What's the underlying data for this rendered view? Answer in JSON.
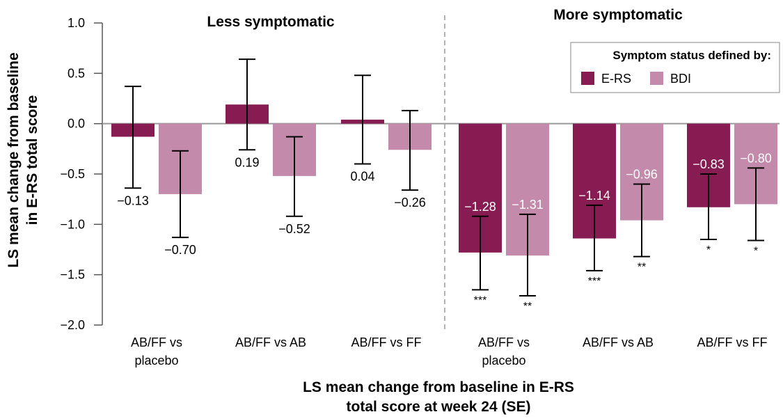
{
  "chart_data": {
    "type": "bar",
    "ylabel_lines": [
      "LS mean change from baseline",
      "in E-RS total score"
    ],
    "xlabel_lines": [
      "LS mean change from baseline in E-RS",
      "total score at week 24 (SE)"
    ],
    "ylim": [
      -2.0,
      1.0
    ],
    "y_ticks": [
      "1.0",
      "0.5",
      "0.0",
      "−0.5",
      "−1.0",
      "−1.5",
      "−2.0"
    ],
    "y_tick_values": [
      1.0,
      0.5,
      0.0,
      -0.5,
      -1.0,
      -1.5,
      -2.0
    ],
    "groups": [
      {
        "label": "Less symptomatic",
        "categories": [
          0,
          1,
          2
        ]
      },
      {
        "label": "More symptomatic",
        "categories": [
          3,
          4,
          5
        ]
      }
    ],
    "categories": [
      [
        "AB/FF vs",
        "placebo"
      ],
      [
        "AB/FF vs AB"
      ],
      [
        "AB/FF vs FF"
      ],
      [
        "AB/FF vs",
        "placebo"
      ],
      [
        "AB/FF vs AB"
      ],
      [
        "AB/FF vs FF"
      ]
    ],
    "legend_title": "Symptom status defined by:",
    "series": [
      {
        "name": "E-RS",
        "color": "#861c52",
        "values": [
          -0.13,
          0.19,
          0.04,
          -1.28,
          -1.14,
          -0.83
        ],
        "labels": [
          "−0.13",
          "0.19",
          "0.04",
          "−1.28",
          "−1.14",
          "−0.83"
        ],
        "err_low": [
          -0.64,
          -0.26,
          -0.4,
          -1.65,
          -1.46,
          -1.15
        ],
        "err_high": [
          0.37,
          0.64,
          0.48,
          -0.92,
          -0.81,
          -0.5
        ],
        "significance": [
          "",
          "",
          "",
          "***",
          "***",
          "*"
        ]
      },
      {
        "name": "BDI",
        "color": "#c48aab",
        "values": [
          -0.7,
          -0.52,
          -0.26,
          -1.31,
          -0.96,
          -0.8
        ],
        "labels": [
          "−0.70",
          "−0.52",
          "−0.26",
          "−1.31",
          "−0.96",
          "−0.80"
        ],
        "err_low": [
          -1.13,
          -0.92,
          -0.66,
          -1.71,
          -1.32,
          -1.16
        ],
        "err_high": [
          -0.27,
          -0.13,
          0.13,
          -0.9,
          -0.6,
          -0.44
        ],
        "significance": [
          "",
          "",
          "",
          "**",
          "**",
          "*"
        ]
      }
    ]
  }
}
